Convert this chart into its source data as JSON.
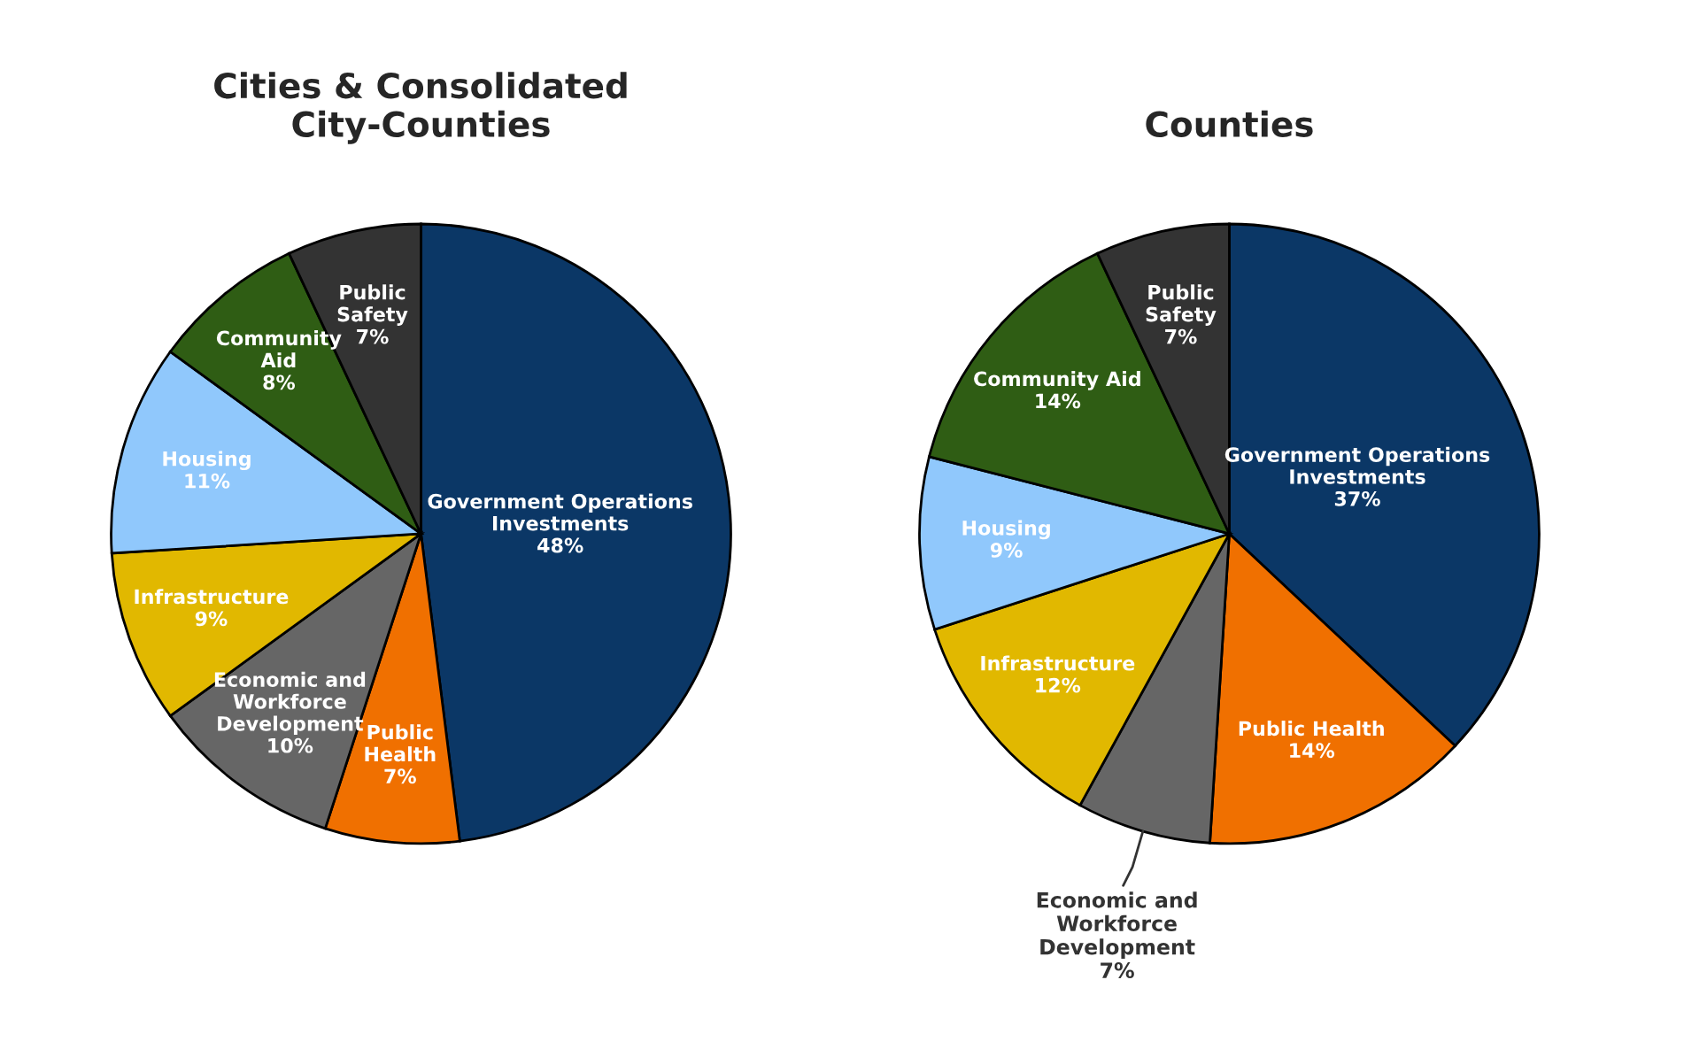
{
  "chart_data": [
    {
      "type": "pie",
      "title": "Cities & Consolidated\nCity-Counties",
      "categories": [
        "Government Operations\nInvestments",
        "Public\nHealth",
        "Economic and\nWorkforce\nDevelopment",
        "Infrastructure",
        "Housing",
        "Community\nAid",
        "Public\nSafety"
      ],
      "values": [
        48,
        7,
        10,
        9,
        11,
        8,
        7
      ],
      "value_labels": [
        "48%",
        "7%",
        "10%",
        "9%",
        "11%",
        "8%",
        "7%"
      ],
      "colors": [
        "#0b3766",
        "#f07000",
        "#666666",
        "#e1b800",
        "#90c8fc",
        "#2f5d14",
        "#333333"
      ],
      "legend": false
    },
    {
      "type": "pie",
      "title": "Counties",
      "categories": [
        "Government Operations\nInvestments",
        "Public Health",
        "Economic and\nWorkforce\nDevelopment",
        "Infrastructure",
        "Housing",
        "Community Aid",
        "Public\nSafety"
      ],
      "values": [
        37,
        14,
        7,
        12,
        9,
        14,
        7
      ],
      "value_labels": [
        "37%",
        "14%",
        "7%",
        "12%",
        "9%",
        "14%",
        "7%"
      ],
      "colors": [
        "#0b3766",
        "#f07000",
        "#666666",
        "#e1b800",
        "#90c8fc",
        "#2f5d14",
        "#333333"
      ],
      "legend": false
    }
  ]
}
